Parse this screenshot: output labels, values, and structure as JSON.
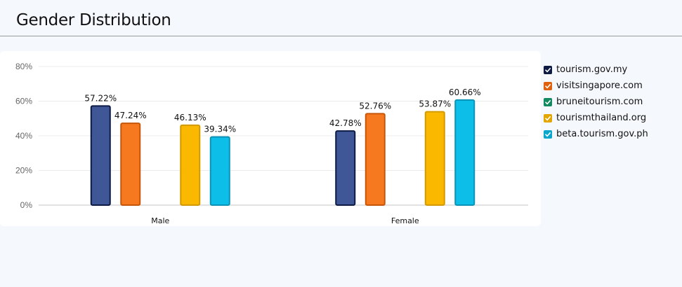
{
  "header": {
    "title": "Gender Distribution"
  },
  "chart_data": {
    "type": "bar",
    "categories": [
      "Male",
      "Female"
    ],
    "ylim": [
      0,
      80
    ],
    "yticks": [
      0,
      20,
      40,
      60,
      80
    ],
    "tick_format": "{v}%",
    "grid": true,
    "legend_placement": "right",
    "series": [
      {
        "name": "tourism.gov.my",
        "values": [
          57.22,
          42.78
        ],
        "labels": [
          "57.22%",
          "42.78%"
        ],
        "color": "#3f5796",
        "border": "#0c1a44"
      },
      {
        "name": "visitsingapore.com",
        "values": [
          47.24,
          52.76
        ],
        "labels": [
          "47.24%",
          "52.76%"
        ],
        "color": "#f6791f",
        "border": "#c85608"
      },
      {
        "name": "bruneitourism.com",
        "values": [
          null,
          null
        ],
        "labels": [
          "",
          ""
        ],
        "color": "#17a673",
        "border": "#0c7a52"
      },
      {
        "name": "tourismthailand.org",
        "values": [
          46.13,
          53.87
        ],
        "labels": [
          "46.13%",
          "53.87%"
        ],
        "color": "#fbb800",
        "border": "#d39a00"
      },
      {
        "name": "beta.tourism.gov.ph",
        "values": [
          39.34,
          60.66
        ],
        "labels": [
          "39.34%",
          "60.66%"
        ],
        "color": "#0dbfe8",
        "border": "#0a93b6"
      }
    ]
  },
  "legend_colors": [
    "#0c1a44",
    "#e0620e",
    "#138a60",
    "#e3a500",
    "#0aa6cc"
  ]
}
